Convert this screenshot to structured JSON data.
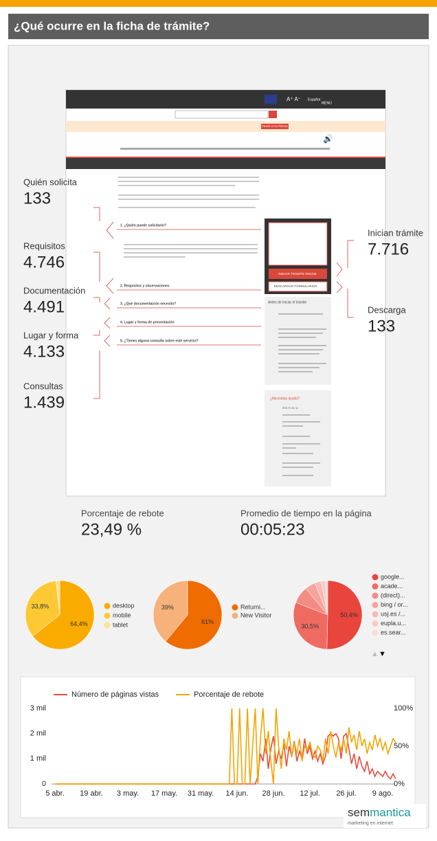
{
  "header": {
    "title": "¿Qué ocurre en la ficha de trámite?"
  },
  "screenshot": {
    "top": [
      "Español",
      "MENÚ"
    ],
    "banner_button": "PEDIR CITA PREVIA",
    "sections": [
      "1. ¿Quién puede solicitarlo?",
      "2. Requisitos y observaciones",
      "3. ¿Qué documentación necesito?",
      "4. Lugar y forma de presentación",
      "5. ¿Tienes alguna consulta sobre este servicio?"
    ],
    "buttons": [
      "INICIAR TRÁMITE ONLINE",
      "DESCARGAR FORMULARIOS"
    ],
    "before_title": "Antes de iniciar el trámite",
    "help_title": "¿Necesitas ayuda?",
    "phone": "976 71 41 11"
  },
  "annotations": [
    {
      "label": "Quién solicita",
      "value": "133"
    },
    {
      "label": "Requisitos",
      "value": "4.746"
    },
    {
      "label": "Documentación",
      "value": "4.491"
    },
    {
      "label": "Lugar y forma",
      "value": "4.133"
    },
    {
      "label": "Consultas",
      "value": "1.439"
    },
    {
      "label": "Inician trámite",
      "value": "7.716"
    },
    {
      "label": "Descarga",
      "value": "133"
    }
  ],
  "metrics": [
    {
      "label": "Porcentaje de rebote",
      "value": "23,49 %"
    },
    {
      "label": "Promedio de tiempo en la página",
      "value": "00:05:23"
    }
  ],
  "chart_data": [
    {
      "type": "pie",
      "categories": [
        "desktop",
        "mobile",
        "tablet"
      ],
      "values": [
        64.4,
        33.8,
        1.8
      ],
      "value_labels": [
        "64,4%",
        "33,8%",
        null
      ],
      "colors": [
        "#f9ab00",
        "#fcc934",
        "#fde293"
      ]
    },
    {
      "type": "pie",
      "categories": [
        "Returni...",
        "New Visitor"
      ],
      "values": [
        61,
        39
      ],
      "value_labels": [
        "61%",
        "39%"
      ],
      "colors": [
        "#ef6c00",
        "#f6b27a"
      ]
    },
    {
      "type": "pie",
      "categories": [
        "google...",
        "acade...",
        "(direct)...",
        "bing / or...",
        "usj.es /...",
        "eupla.u...",
        "es.sear..."
      ],
      "values": [
        50.4,
        30.5,
        8,
        5,
        3,
        2,
        1.1
      ],
      "value_labels": [
        "50,4%",
        "30,5%",
        null,
        null,
        null,
        null,
        null
      ],
      "colors": [
        "#e8453c",
        "#ef6b62",
        "#f28c84",
        "#f5a49d",
        "#f7b9b3",
        "#f9cbc7",
        "#fbdcd9"
      ]
    },
    {
      "type": "line",
      "legend": "top",
      "categories": [
        "5 abr.",
        null,
        null,
        null,
        null,
        null,
        null,
        null,
        null,
        null,
        null,
        null,
        null,
        null,
        "19 abr.",
        null,
        null,
        null,
        null,
        null,
        null,
        null,
        null,
        null,
        null,
        null,
        null,
        null,
        "3 may.",
        null,
        null,
        null,
        null,
        null,
        null,
        null,
        null,
        null,
        null,
        null,
        null,
        null,
        "17 may.",
        null,
        null,
        null,
        null,
        null,
        null,
        null,
        null,
        null,
        null,
        null,
        null,
        null,
        "31 may.",
        null,
        null,
        null,
        null,
        null,
        null,
        null,
        null,
        null,
        null,
        null,
        null,
        null,
        "14 jun.",
        null,
        null,
        null,
        null,
        null,
        null,
        null,
        null,
        null,
        null,
        null,
        null,
        null,
        "28 jun.",
        null,
        null,
        null,
        null,
        null,
        null,
        null,
        null,
        null,
        null,
        null,
        null,
        null,
        "12 jul.",
        null,
        null,
        null,
        null,
        null,
        null,
        null,
        null,
        null,
        null,
        null,
        null,
        null,
        "26 jul.",
        null,
        null,
        null,
        null,
        null,
        null,
        null,
        null,
        null,
        null,
        null,
        null,
        null,
        "9 ago.",
        null,
        null,
        null,
        null,
        null
      ],
      "series": [
        {
          "name": "Número de páginas vistas",
          "color": "#e94b3c",
          "values": [
            0,
            0,
            0,
            0,
            0,
            0,
            0,
            0,
            0,
            0,
            0,
            0,
            0,
            0,
            0,
            0,
            0,
            0,
            0,
            0,
            0,
            0,
            0,
            0,
            0,
            0,
            0,
            0,
            0,
            0,
            0,
            0,
            0,
            0,
            0,
            0,
            0,
            0,
            0,
            0,
            0,
            0,
            0,
            0,
            0,
            0,
            0,
            0,
            0,
            0,
            0,
            0,
            0,
            0,
            0,
            0,
            0,
            0,
            0,
            0,
            0,
            0,
            0,
            0,
            0,
            0,
            0,
            0,
            0,
            0,
            0,
            0,
            0,
            0,
            0,
            0,
            0,
            0,
            300,
            1200,
            900,
            1800,
            600,
            1400,
            1900,
            800,
            1300,
            1000,
            1600,
            700,
            1500,
            1100,
            1700,
            900,
            1300,
            1000,
            1800,
            1200,
            1500,
            1000,
            1300,
            900,
            1200,
            800,
            1100,
            1900,
            2000,
            1900,
            2000,
            1800,
            1000,
            1900,
            2000,
            1400,
            800,
            1200,
            600,
            1100,
            700,
            500,
            900,
            400,
            600,
            300,
            500,
            400,
            300,
            500,
            300,
            200,
            400,
            200
          ]
        },
        {
          "name": "Porcentaje de rebote",
          "color": "#f4a300",
          "axis": "y2",
          "values": [
            0,
            0,
            0,
            0,
            0,
            0,
            0,
            0,
            0,
            0,
            0,
            0,
            0,
            0,
            0,
            0,
            0,
            0,
            0,
            0,
            0,
            0,
            0,
            0,
            0,
            0,
            0,
            0,
            0,
            0,
            0,
            0,
            0,
            0,
            0,
            0,
            0,
            0,
            0,
            0,
            0,
            0,
            0,
            0,
            0,
            0,
            0,
            0,
            0,
            0,
            0,
            0,
            0,
            0,
            0,
            0,
            0,
            0,
            0,
            0,
            0,
            0,
            0,
            0,
            0,
            0,
            0,
            0,
            100,
            0,
            0,
            100,
            0,
            0,
            100,
            0,
            50,
            100,
            0,
            60,
            100,
            40,
            70,
            30,
            0,
            100,
            50,
            20,
            60,
            45,
            70,
            35,
            55,
            40,
            60,
            30,
            50,
            45,
            55,
            40,
            35,
            50,
            45,
            30,
            60,
            40,
            70,
            50,
            35,
            55,
            45,
            60,
            40,
            75,
            55,
            65,
            45,
            70,
            50,
            60,
            40,
            55,
            45,
            65,
            50,
            60,
            45,
            55,
            40,
            50,
            60,
            55
          ]
        }
      ],
      "ylim": [
        0,
        3000
      ],
      "yticks": [
        0,
        {
          "value": 1000,
          "label": "1 mil"
        },
        {
          "value": 2000,
          "label": "2 mil"
        },
        {
          "value": 3000,
          "label": "3 mil"
        }
      ],
      "y2lim": [
        0,
        100
      ],
      "y2ticks": [
        {
          "value": 0,
          "label": "0%"
        },
        {
          "value": 50,
          "label": "50%"
        },
        {
          "value": 100,
          "label": "100%"
        }
      ],
      "grid": false
    }
  ],
  "footer": {
    "brand": [
      "sem",
      "mantica"
    ],
    "tagline": "marketing en internet"
  }
}
